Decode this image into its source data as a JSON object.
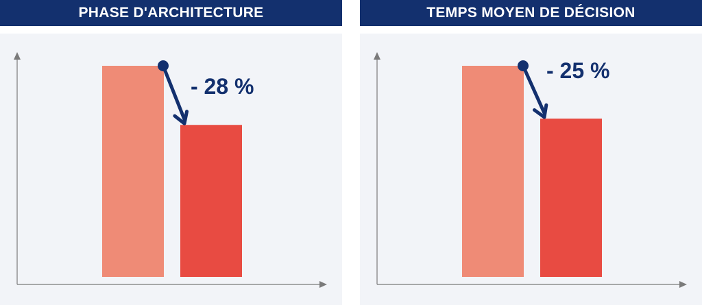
{
  "colors": {
    "banner": "#13306e",
    "plot_background": "#f2f4f8",
    "bar_before": "#ef8b76",
    "bar_after": "#e84b42",
    "arrow": "#13306e",
    "axis": "#7a7a7a"
  },
  "chart_data": [
    {
      "type": "bar",
      "title": "PHASE D'ARCHITECTURE",
      "categories": [
        "",
        ""
      ],
      "values": [
        100,
        72
      ],
      "ylim": [
        0,
        100
      ],
      "annotation": "- 28 %",
      "grid": false,
      "axes": "arrows, no tick labels"
    },
    {
      "type": "bar",
      "title": "TEMPS MOYEN DE DÉCISION",
      "categories": [
        "",
        ""
      ],
      "values": [
        100,
        75
      ],
      "ylim": [
        0,
        100
      ],
      "annotation": "- 25 %",
      "grid": false,
      "axes": "arrows, no tick labels"
    }
  ]
}
